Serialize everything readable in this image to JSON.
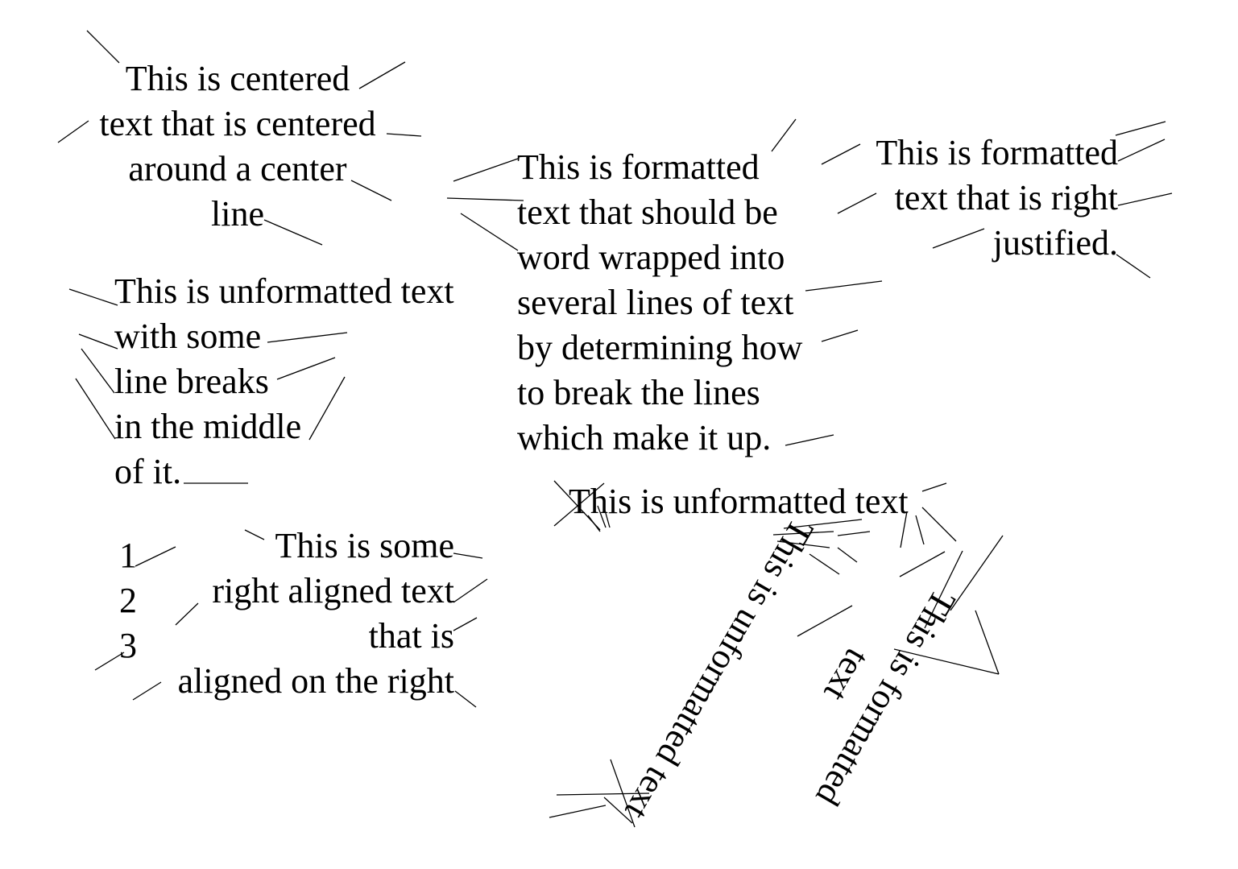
{
  "colors": {
    "text": "#000000",
    "background": "#ffffff",
    "lines": "#000000"
  },
  "centered_block": {
    "lines": [
      "This is centered",
      "text that is centered",
      "around a center",
      "line"
    ]
  },
  "wrapped_block": {
    "lines": [
      "This is formatted",
      "text that should be",
      "word wrapped into",
      "several lines of text",
      "by determining how",
      "to break the lines",
      "which make it up."
    ]
  },
  "right_justified_block": {
    "lines": [
      "This is formatted",
      "text that is right",
      "justified."
    ]
  },
  "unformatted_block": {
    "lines": [
      "This is unformatted text",
      "with some",
      "line breaks",
      "in the middle",
      "of it."
    ]
  },
  "number_list": {
    "items": [
      "1",
      "2",
      "3"
    ]
  },
  "right_aligned_block": {
    "lines": [
      "This is some",
      "right aligned text",
      "that is",
      "aligned on the right"
    ]
  },
  "rotated_unformatted_horizontal": {
    "text": "This is unformatted text"
  },
  "rotated_unformatted_diagonal": {
    "text": "This is unformatted text"
  },
  "rotated_formatted_diagonal": {
    "lines": [
      "This is formatted",
      "text"
    ]
  }
}
